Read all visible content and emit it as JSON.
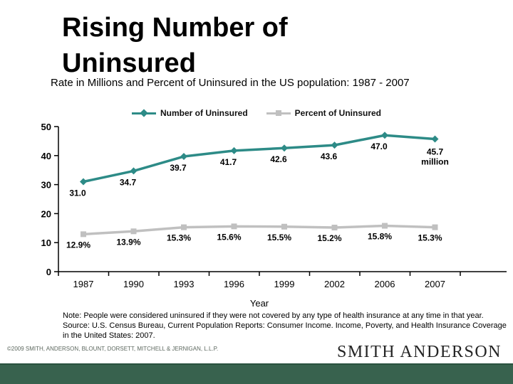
{
  "slide": {
    "title": "Rising Number of Uninsured",
    "subtitle": "Rate in Millions and Percent of Uninsured in the US population: 1987 - 2007",
    "note": "Note: People were considered uninsured if they were not covered by any type of health insurance at any time in that year.",
    "source": "Source: U.S. Census Bureau, Current Population Reports: Consumer Income. Income, Poverty, and Health Insurance Coverage in the United States: 2007.",
    "copyright": "©2009 SMITH, ANDERSON, BLOUNT, DORSETT, MITCHELL & JERNIGAN, L.L.P.",
    "logo_text": "SMITH ANDERSON",
    "colors": {
      "accent_teal": "#2D8B87",
      "line_gray": "#C0C0C0",
      "footer_green": "#38624E",
      "copyright_gray": "#5d685f"
    }
  },
  "chart_data": {
    "type": "line",
    "title": "",
    "categories": [
      "1987",
      "1990",
      "1993",
      "1996",
      "1999",
      "2002",
      "2006",
      "2007"
    ],
    "series": [
      {
        "name": "Number of Uninsured",
        "color": "#2D8B87",
        "marker": "diamond",
        "values": [
          31.0,
          34.7,
          39.7,
          41.7,
          42.6,
          43.6,
          47.0,
          45.7
        ],
        "labels": [
          "31.0",
          "34.7",
          "39.7",
          "41.7",
          "42.6",
          "43.6",
          "47.0",
          "45.7\nmillion"
        ]
      },
      {
        "name": "Percent of Uninsured",
        "color": "#C0C0C0",
        "marker": "square",
        "values": [
          12.9,
          13.9,
          15.3,
          15.6,
          15.5,
          15.2,
          15.8,
          15.3
        ],
        "labels": [
          "12.9%",
          "13.9%",
          "15.3%",
          "15.6%",
          "15.5%",
          "15.2%",
          "15.8%",
          "15.3%"
        ]
      }
    ],
    "xlabel": "Year",
    "ylabel": "",
    "ylim": [
      0,
      50
    ],
    "yticks": [
      0,
      10,
      20,
      30,
      40,
      50
    ],
    "legend_position": "top",
    "grid": false
  }
}
